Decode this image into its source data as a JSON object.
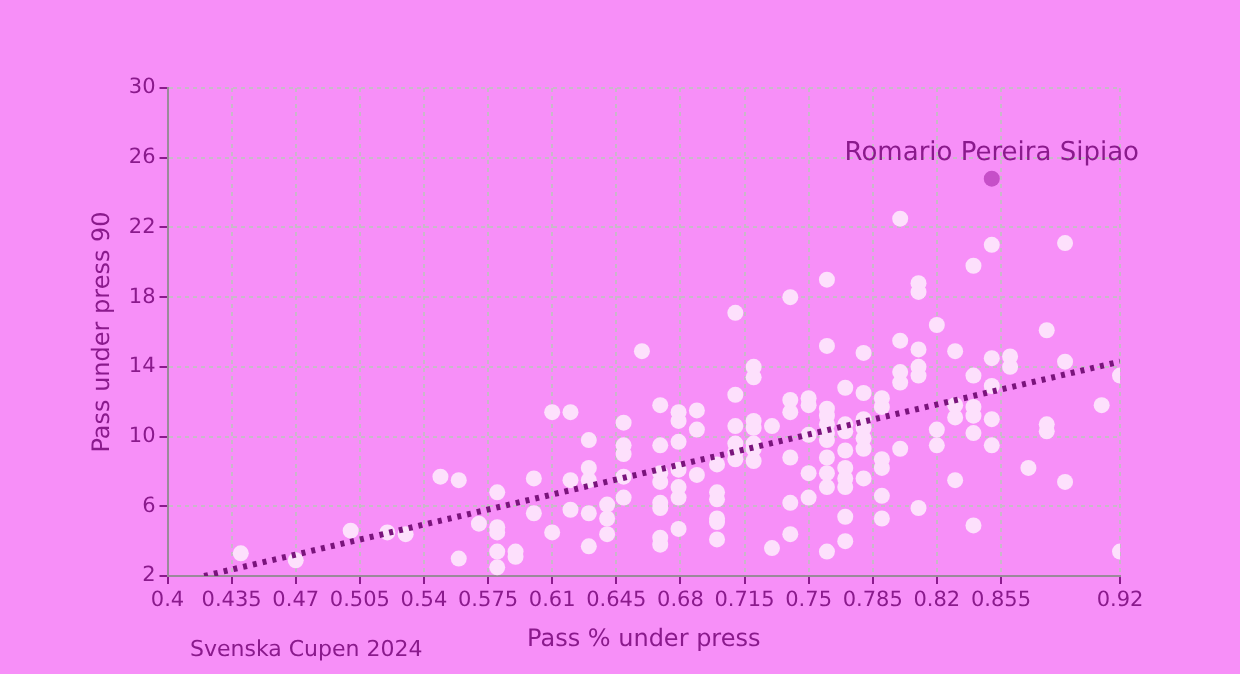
{
  "chart_data": {
    "type": "scatter",
    "xlabel": "Pass % under press",
    "ylabel": "Pass under press 90",
    "xlim": [
      0.4,
      0.92
    ],
    "xticks": [
      0.4,
      0.435,
      0.47,
      0.505,
      0.54,
      0.575,
      0.61,
      0.645,
      0.68,
      0.715,
      0.75,
      0.785,
      0.82,
      0.855,
      0.92
    ],
    "ylim": [
      2,
      30
    ],
    "yticks": [
      2,
      6,
      10,
      14,
      18,
      22,
      26,
      30
    ],
    "grid": true,
    "legend": false,
    "marker": "circle",
    "annotations": [
      {
        "text": "Romario Pereira Sipiao",
        "x": 0.85,
        "y": 24.8
      },
      "Svenska Cupen 2024"
    ],
    "series": [
      {
        "color": "#fde0fc",
        "x": [
          0.44,
          0.47,
          0.5,
          0.52,
          0.53,
          0.549,
          0.559,
          0.559,
          0.57,
          0.58,
          0.58,
          0.58,
          0.58,
          0.58,
          0.59,
          0.59,
          0.6,
          0.6,
          0.61,
          0.61,
          0.62,
          0.62,
          0.62,
          0.63,
          0.63,
          0.63,
          0.63,
          0.63,
          0.64,
          0.64,
          0.64,
          0.649,
          0.649,
          0.649,
          0.649,
          0.649,
          0.659,
          0.669,
          0.669,
          0.669,
          0.669,
          0.669,
          0.669,
          0.669,
          0.669,
          0.679,
          0.679,
          0.679,
          0.679,
          0.679,
          0.679,
          0.679,
          0.689,
          0.689,
          0.689,
          0.7,
          0.7,
          0.7,
          0.7,
          0.7,
          0.7,
          0.71,
          0.71,
          0.71,
          0.71,
          0.71,
          0.71,
          0.72,
          0.72,
          0.72,
          0.72,
          0.72,
          0.72,
          0.72,
          0.73,
          0.73,
          0.74,
          0.74,
          0.74,
          0.74,
          0.74,
          0.74,
          0.75,
          0.75,
          0.75,
          0.75,
          0.75,
          0.76,
          0.76,
          0.76,
          0.76,
          0.76,
          0.76,
          0.76,
          0.76,
          0.76,
          0.76,
          0.76,
          0.77,
          0.77,
          0.77,
          0.77,
          0.77,
          0.77,
          0.77,
          0.77,
          0.77,
          0.78,
          0.78,
          0.78,
          0.78,
          0.78,
          0.78,
          0.78,
          0.79,
          0.79,
          0.79,
          0.79,
          0.79,
          0.79,
          0.8,
          0.8,
          0.8,
          0.8,
          0.8,
          0.81,
          0.81,
          0.81,
          0.81,
          0.81,
          0.81,
          0.82,
          0.82,
          0.82,
          0.83,
          0.83,
          0.83,
          0.83,
          0.84,
          0.84,
          0.84,
          0.84,
          0.84,
          0.84,
          0.85,
          0.85,
          0.85,
          0.85,
          0.85,
          0.86,
          0.86,
          0.87,
          0.88,
          0.88,
          0.88,
          0.89,
          0.89,
          0.89,
          0.91,
          0.92,
          0.92
        ],
        "values": [
          3.3,
          2.9,
          4.6,
          4.5,
          4.4,
          7.7,
          7.5,
          3.0,
          5.0,
          6.8,
          4.8,
          4.5,
          3.4,
          2.5,
          3.4,
          3.1,
          7.6,
          5.6,
          11.4,
          4.5,
          11.4,
          7.5,
          5.8,
          9.8,
          8.2,
          7.5,
          5.6,
          3.7,
          6.1,
          5.3,
          4.4,
          10.8,
          9.5,
          9.0,
          7.7,
          6.5,
          14.9,
          11.8,
          9.5,
          7.9,
          7.4,
          6.2,
          5.9,
          4.2,
          3.8,
          11.4,
          10.9,
          9.7,
          8.1,
          7.1,
          6.5,
          4.7,
          11.5,
          10.4,
          7.8,
          8.4,
          6.8,
          6.4,
          5.3,
          5.1,
          4.1,
          17.1,
          12.4,
          10.6,
          9.6,
          9.1,
          8.7,
          14.0,
          13.4,
          10.9,
          10.5,
          9.6,
          9.3,
          8.6,
          10.6,
          3.6,
          18.0,
          12.1,
          11.4,
          8.8,
          6.2,
          4.4,
          12.2,
          11.8,
          10.1,
          7.9,
          6.5,
          19.0,
          15.2,
          11.6,
          11.2,
          10.7,
          10.2,
          9.8,
          8.8,
          7.9,
          7.1,
          3.4,
          12.8,
          10.7,
          10.3,
          9.2,
          8.2,
          7.6,
          7.1,
          5.4,
          4.0,
          14.8,
          12.5,
          11.0,
          10.5,
          9.9,
          9.3,
          7.6,
          12.2,
          11.7,
          8.7,
          8.2,
          6.6,
          5.3,
          22.5,
          15.5,
          13.7,
          13.1,
          9.3,
          18.8,
          18.3,
          15.0,
          14.0,
          13.5,
          5.9,
          16.4,
          10.4,
          9.5,
          14.9,
          11.8,
          11.1,
          7.5,
          19.8,
          13.5,
          11.7,
          11.2,
          10.2,
          4.9,
          21.0,
          14.5,
          12.9,
          11.0,
          9.5,
          14.6,
          14.0,
          8.2,
          16.1,
          10.7,
          10.3,
          21.1,
          14.3,
          7.4,
          11.8,
          13.5,
          3.4
        ]
      },
      {
        "color": "#c64fc8",
        "x": [
          0.85
        ],
        "values": [
          24.8
        ]
      },
      {
        "type": "line",
        "color": "#7a147c",
        "line_style": "dotted",
        "marker": "none",
        "x": [
          0.42,
          0.92
        ],
        "values": [
          2,
          14.3
        ]
      }
    ]
  }
}
